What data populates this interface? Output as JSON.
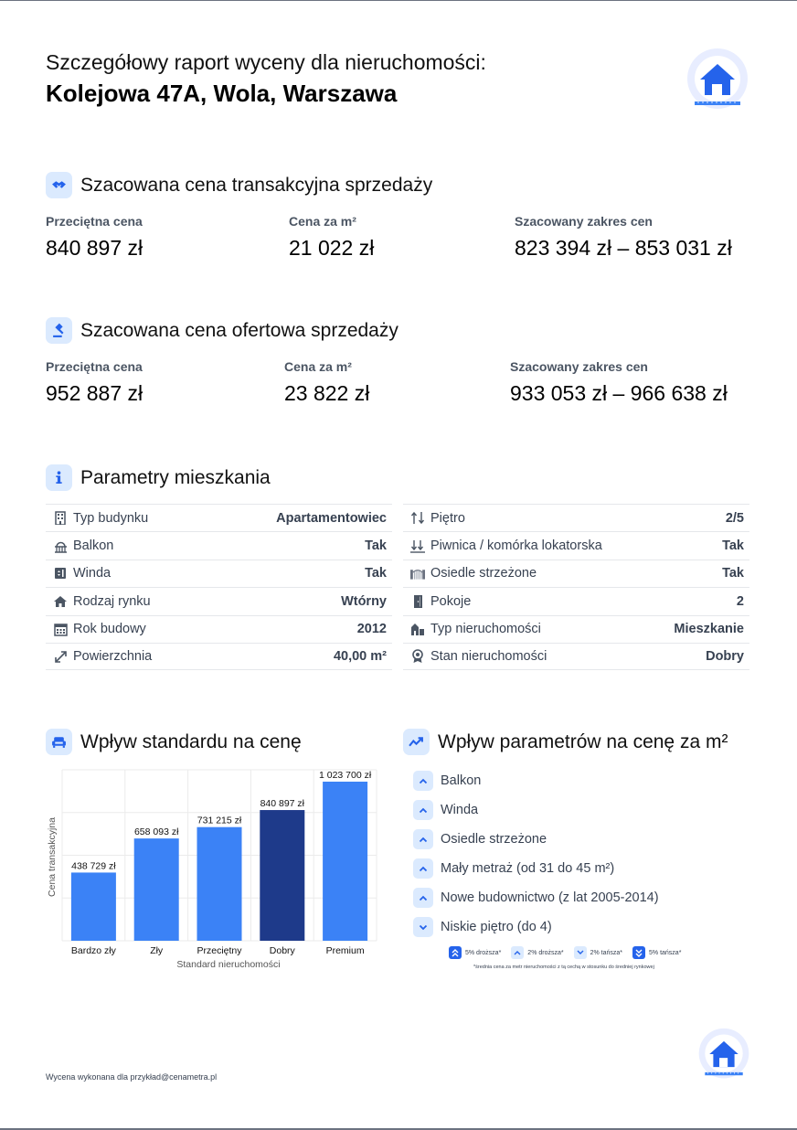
{
  "header": {
    "subtitle": "Szczegółowy raport wyceny dla nieruchomości:",
    "address": "Kolejowa 47A, Wola, Warszawa"
  },
  "transaction": {
    "title": "Szacowana cena transakcyjna sprzedaży",
    "avg_label": "Przeciętna cena",
    "avg_value": "840 897 zł",
    "sqm_label": "Cena za m²",
    "sqm_value": "21 022 zł",
    "range_label": "Szacowany zakres cen",
    "range_value": "823 394 zł – 853 031 zł"
  },
  "offer": {
    "title": "Szacowana cena ofertowa sprzedaży",
    "avg_label": "Przeciętna cena",
    "avg_value": "952 887 zł",
    "sqm_label": "Cena za m²",
    "sqm_value": "23 822 zł",
    "range_label": "Szacowany zakres cen",
    "range_value": "933 053 zł – 966 638 zł"
  },
  "parameters": {
    "title": "Parametry mieszkania",
    "left": [
      {
        "icon": "building-icon",
        "label": "Typ budynku",
        "value": "Apartamentowiec"
      },
      {
        "icon": "balcony-icon",
        "label": "Balkon",
        "value": "Tak"
      },
      {
        "icon": "elevator-icon",
        "label": "Winda",
        "value": "Tak"
      },
      {
        "icon": "market-icon",
        "label": "Rodzaj rynku",
        "value": "Wtórny"
      },
      {
        "icon": "calendar-icon",
        "label": "Rok budowy",
        "value": "2012"
      },
      {
        "icon": "area-arrow-icon",
        "label": "Powierzchnia",
        "value": "40,00 m²"
      }
    ],
    "right": [
      {
        "icon": "floor-arrows-icon",
        "label": "Piętro",
        "value": "2/5"
      },
      {
        "icon": "basement-icon",
        "label": "Piwnica / komórka lokatorska",
        "value": "Tak"
      },
      {
        "icon": "gated-estate-icon",
        "label": "Osiedle strzeżone",
        "value": "Tak"
      },
      {
        "icon": "door-icon",
        "label": "Pokoje",
        "value": "2"
      },
      {
        "icon": "property-type-icon",
        "label": "Typ nieruchomości",
        "value": "Mieszkanie"
      },
      {
        "icon": "condition-badge-icon",
        "label": "Stan nieruchomości",
        "value": "Dobry"
      }
    ]
  },
  "standard_section": {
    "title": "Wpływ standardu na cenę"
  },
  "impact_section": {
    "title": "Wpływ parametrów na cenę za m²",
    "items": [
      {
        "label": "Balkon",
        "direction": "up"
      },
      {
        "label": "Winda",
        "direction": "up"
      },
      {
        "label": "Osiedle strzeżone",
        "direction": "up"
      },
      {
        "label": "Mały metraż (od 31 do 45 m²)",
        "direction": "up"
      },
      {
        "label": "Nowe budownictwo (z lat 2005-2014)",
        "direction": "up"
      },
      {
        "label": "Niskie piętro (do 4)",
        "direction": "down"
      }
    ],
    "legend": [
      {
        "label": "5% droższa*",
        "icon": "double-chevron-up-icon"
      },
      {
        "label": "2% droższa*",
        "icon": "chevron-up-icon"
      },
      {
        "label": "2% tańsza*",
        "icon": "chevron-down-icon"
      },
      {
        "label": "5% tańsza*",
        "icon": "double-chevron-down-icon"
      }
    ],
    "note": "*średnia cena za metr nieruchomości z tą cechą w stosunku do średniej rynkowej"
  },
  "chart_data": {
    "type": "bar",
    "categories": [
      "Bardzo zły",
      "Zły",
      "Przeciętny",
      "Dobry",
      "Premium"
    ],
    "values": [
      438729,
      658093,
      731215,
      840897,
      1023700
    ],
    "value_labels": [
      "438 729 zł",
      "658 093 zł",
      "731 215 zł",
      "840 897 zł",
      "1 023 700 zł"
    ],
    "highlight_index": 3,
    "xlabel": "Standard nieruchomości",
    "ylabel": "Cena transakcyjna",
    "ylim": [
      0,
      1100000
    ],
    "grid": true,
    "colors": {
      "bar": "#3b82f6",
      "highlight": "#1e3a8a",
      "grid": "#ebebeb"
    }
  },
  "footer": {
    "text": "Wycena wykonana dla przykład@cenametra.pl"
  },
  "colors": {
    "accent": "#2563eb",
    "accent_light": "#dbeafe"
  }
}
